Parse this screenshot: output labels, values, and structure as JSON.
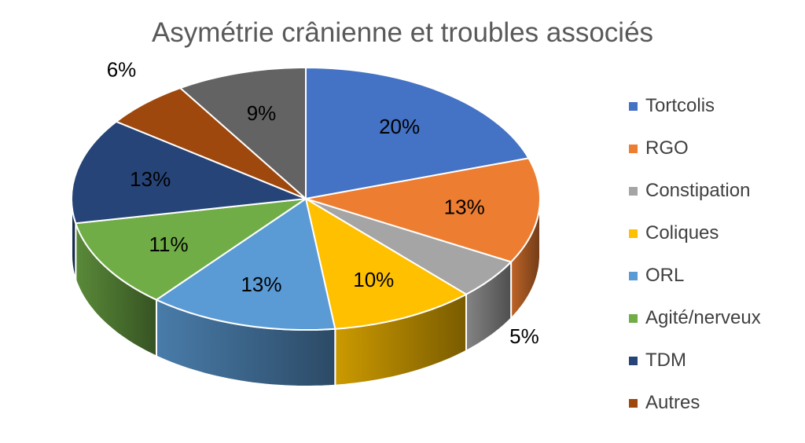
{
  "chart_data": {
    "type": "pie",
    "title": "Asymétrie crânienne et troubles associés",
    "three_d": true,
    "legend_position": "right",
    "slices": [
      {
        "name": "Tortcolis",
        "value": 20,
        "label": "20%",
        "color": "#4472C4"
      },
      {
        "name": "RGO",
        "value": 13,
        "label": "13%",
        "color": "#ED7D31"
      },
      {
        "name": "Constipation",
        "value": 5,
        "label": "5%",
        "color": "#A5A5A5"
      },
      {
        "name": "Coliques",
        "value": 10,
        "label": "10%",
        "color": "#FFC000"
      },
      {
        "name": "ORL",
        "value": 13,
        "label": "13%",
        "color": "#5B9BD5"
      },
      {
        "name": "Agité/nerveux",
        "value": 11,
        "label": "11%",
        "color": "#70AD47"
      },
      {
        "name": "TDM",
        "value": 13,
        "label": "13%",
        "color": "#264478"
      },
      {
        "name": "Autres",
        "value": 6,
        "label": "6%",
        "color": "#9E480E"
      },
      {
        "name": "",
        "value": 9,
        "label": "9%",
        "color": "#636363"
      }
    ]
  }
}
